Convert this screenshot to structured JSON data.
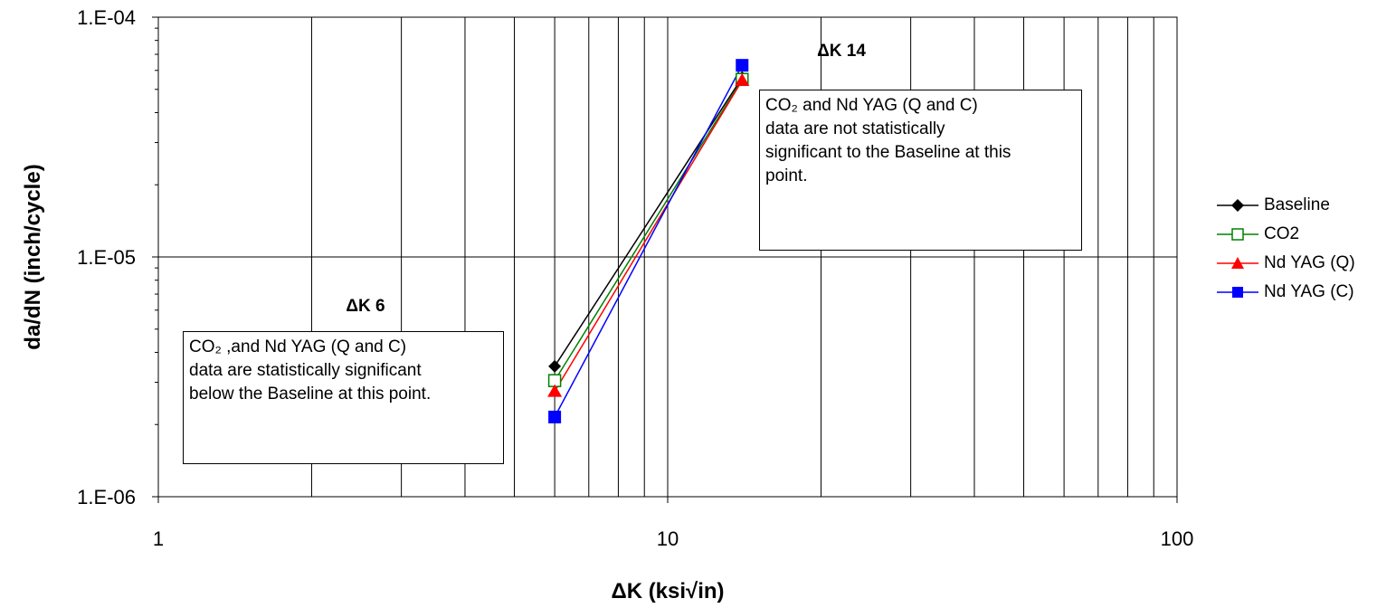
{
  "chart_data": {
    "type": "scatter",
    "x_scale": "log",
    "y_scale": "log",
    "xlim": [
      1,
      100
    ],
    "ylim": [
      1e-06,
      0.0001
    ],
    "xlabel": "ΔK (ksi√in)",
    "ylabel": "da/dN (inch/cycle)",
    "x_tick_labels": [
      "1",
      "10",
      "100"
    ],
    "y_tick_labels": [
      "1.E-06",
      "1.E-05",
      "1.E-04"
    ],
    "grid": "vertical minor and major, horizontal major",
    "legend_position": "right",
    "series": [
      {
        "name": "Baseline",
        "color": "#000000",
        "marker": "diamond",
        "x": [
          6,
          14
        ],
        "y": [
          3.5e-06,
          5.6e-05
        ]
      },
      {
        "name": "CO2",
        "color": "#008000",
        "marker": "square-open",
        "x": [
          6,
          14
        ],
        "y": [
          3.05e-06,
          5.5e-05
        ]
      },
      {
        "name": "Nd YAG (Q)",
        "color": "#ff0000",
        "marker": "triangle",
        "x": [
          6,
          14
        ],
        "y": [
          2.75e-06,
          5.45e-05
        ]
      },
      {
        "name": "Nd YAG (C)",
        "color": "#0000ff",
        "marker": "square",
        "x": [
          6,
          14
        ],
        "y": [
          2.15e-06,
          6.3e-05
        ]
      }
    ],
    "annotations": [
      {
        "label": "ΔK 6",
        "lines": [
          "CO₂ ,and Nd YAG (Q and C)",
          "data are statistically significant",
          "below the Baseline at this point."
        ]
      },
      {
        "label": "ΔK 14",
        "lines": [
          "CO₂ and Nd YAG (Q and C)",
          "data are not statistically",
          "significant to the Baseline at this",
          "point."
        ]
      }
    ]
  }
}
